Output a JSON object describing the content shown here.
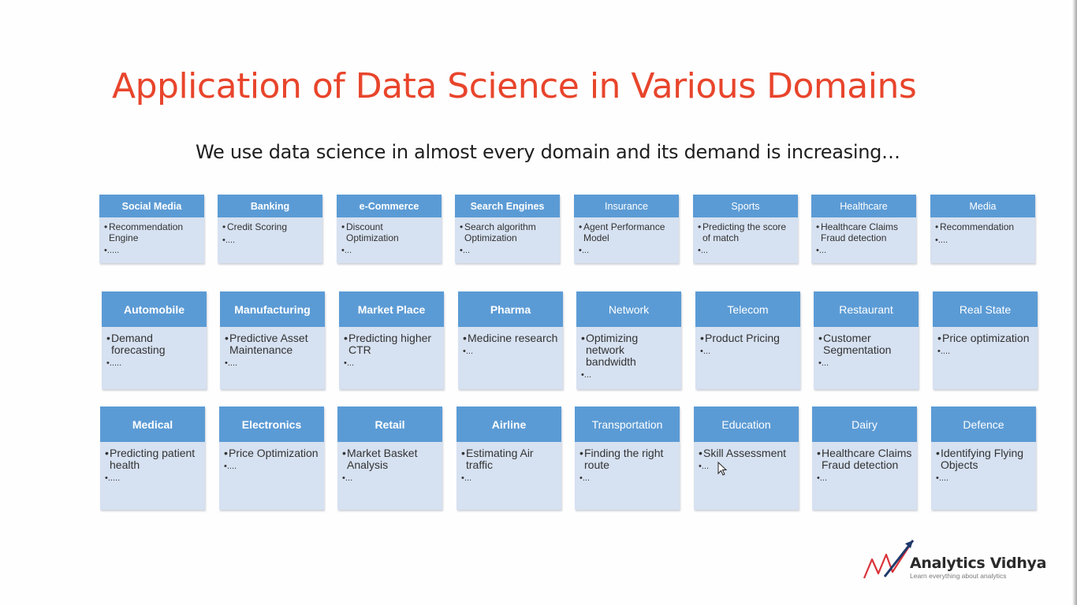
{
  "slide": {
    "title": "Application of Data Science in Various Domains",
    "subtitle": "We use data science in almost every domain and its demand is increasing…",
    "accent_color": "#e8452c",
    "card_header_color": "#5b9bd5",
    "card_body_color": "#d6e1f1"
  },
  "rows": [
    [
      {
        "title": "Social Media",
        "item": "Recommendation Engine",
        "more": "•....."
      },
      {
        "title": "Banking",
        "item": "Credit Scoring",
        "more": "•...."
      },
      {
        "title": "e-Commerce",
        "item": "Discount Optimization",
        "more": "•..."
      },
      {
        "title": "Search Engines",
        "item": "Search algorithm Optimization",
        "more": "•..."
      },
      {
        "title": "Insurance",
        "item": "Agent Performance Model",
        "more": "•..."
      },
      {
        "title": "Sports",
        "item": "Predicting the score of match",
        "more": "•..."
      },
      {
        "title": "Healthcare",
        "item": "Healthcare Claims Fraud detection",
        "more": "•..."
      },
      {
        "title": "Media",
        "item": "Recommendation",
        "more": "•...."
      }
    ],
    [
      {
        "title": "Automobile",
        "item": "Demand forecasting",
        "more": "•....."
      },
      {
        "title": "Manufacturing",
        "item": "Predictive Asset Maintenance",
        "more": "•...."
      },
      {
        "title": "Market Place",
        "item": "Predicting higher CTR",
        "more": "•..."
      },
      {
        "title": "Pharma",
        "item": "Medicine research",
        "more": "•..."
      },
      {
        "title": "Network",
        "item": "Optimizing network bandwidth",
        "more": "•..."
      },
      {
        "title": "Telecom",
        "item": "Product Pricing",
        "more": "•..."
      },
      {
        "title": "Restaurant",
        "item": "Customer Segmentation",
        "more": "•..."
      },
      {
        "title": "Real State",
        "item": "Price optimization",
        "more": "•...."
      }
    ],
    [
      {
        "title": "Medical",
        "item": "Predicting patient health",
        "more": "•....."
      },
      {
        "title": "Electronics",
        "item": "Price Optimization",
        "more": "•...."
      },
      {
        "title": "Retail",
        "item": "Market Basket Analysis",
        "more": "•..."
      },
      {
        "title": "Airline",
        "item": "Estimating Air traffic",
        "more": "•..."
      },
      {
        "title": "Transportation",
        "item": "Finding the right route",
        "more": "•..."
      },
      {
        "title": "Education",
        "item": "Skill Assessment",
        "more": "•..."
      },
      {
        "title": "Dairy",
        "item": "Healthcare Claims Fraud detection",
        "more": "•..."
      },
      {
        "title": "Defence",
        "item": "Identifying Flying Objects",
        "more": "•...."
      }
    ]
  ],
  "logo": {
    "name": "Analytics Vidhya",
    "tagline": "Learn everything about analytics"
  }
}
